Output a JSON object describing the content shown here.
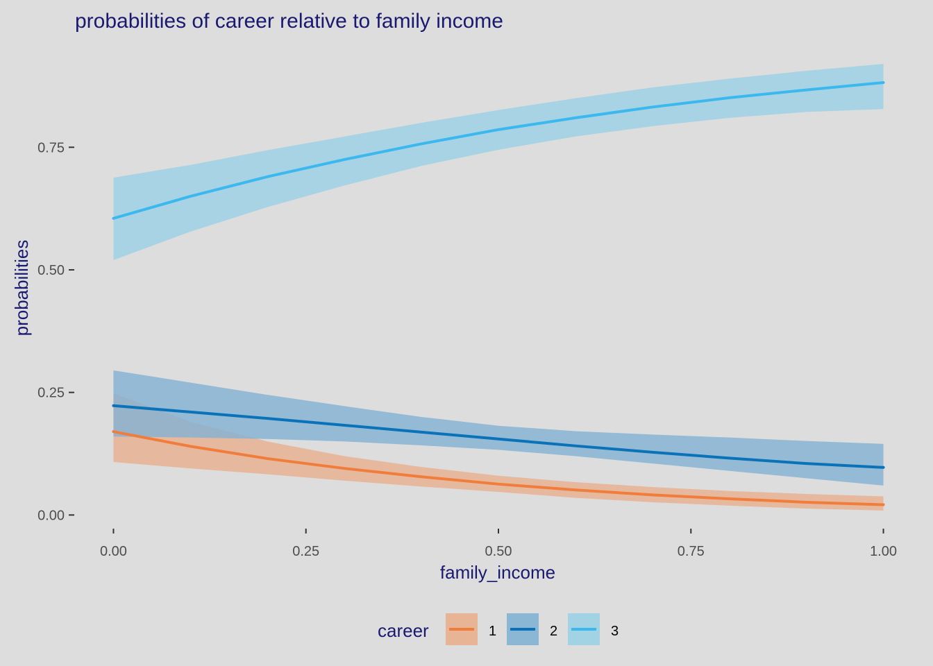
{
  "chart_data": {
    "type": "line",
    "title": "probabilities of career relative to family income",
    "xlabel": "family_income",
    "ylabel": "probabilities",
    "xlim": [
      -0.05,
      1.05
    ],
    "ylim": [
      -0.025,
      0.94
    ],
    "x_ticks": [
      0,
      0.25,
      0.5,
      0.75,
      1
    ],
    "x_tick_labels": [
      "0.00",
      "0.25",
      "0.50",
      "0.75",
      "1.00"
    ],
    "y_ticks": [
      0,
      0.25,
      0.5,
      0.75
    ],
    "y_tick_labels": [
      "0.00",
      "0.25",
      "0.50",
      "0.75"
    ],
    "grid": false,
    "legend": {
      "title": "career",
      "position": "bottom"
    },
    "x": [
      0,
      0.1,
      0.2,
      0.3,
      0.4,
      0.5,
      0.6,
      0.7,
      0.8,
      0.9,
      1.0
    ],
    "series": [
      {
        "name": "1",
        "color": "#f07d3c",
        "fill": "#e8b08e",
        "values": [
          0.17,
          0.14,
          0.115,
          0.095,
          0.078,
          0.063,
          0.051,
          0.041,
          0.033,
          0.026,
          0.021
        ],
        "lower": [
          0.108,
          0.095,
          0.083,
          0.07,
          0.058,
          0.047,
          0.035,
          0.026,
          0.019,
          0.013,
          0.009
        ],
        "upper": [
          0.248,
          0.19,
          0.15,
          0.12,
          0.098,
          0.08,
          0.067,
          0.057,
          0.049,
          0.043,
          0.038
        ]
      },
      {
        "name": "2",
        "color": "#0a72b8",
        "fill": "#82b1d3",
        "values": [
          0.223,
          0.21,
          0.197,
          0.183,
          0.169,
          0.155,
          0.141,
          0.128,
          0.116,
          0.105,
          0.097
        ],
        "lower": [
          0.16,
          0.158,
          0.155,
          0.15,
          0.142,
          0.133,
          0.12,
          0.105,
          0.09,
          0.075,
          0.06
        ],
        "upper": [
          0.295,
          0.27,
          0.245,
          0.222,
          0.2,
          0.182,
          0.171,
          0.164,
          0.158,
          0.151,
          0.145
        ]
      },
      {
        "name": "3",
        "color": "#3bb8ee",
        "fill": "#9bd1e6",
        "values": [
          0.605,
          0.65,
          0.69,
          0.725,
          0.757,
          0.786,
          0.81,
          0.832,
          0.851,
          0.867,
          0.882
        ],
        "lower": [
          0.52,
          0.578,
          0.628,
          0.672,
          0.712,
          0.745,
          0.772,
          0.793,
          0.81,
          0.822,
          0.828
        ],
        "upper": [
          0.688,
          0.714,
          0.744,
          0.772,
          0.8,
          0.826,
          0.85,
          0.872,
          0.89,
          0.906,
          0.92
        ]
      }
    ]
  }
}
